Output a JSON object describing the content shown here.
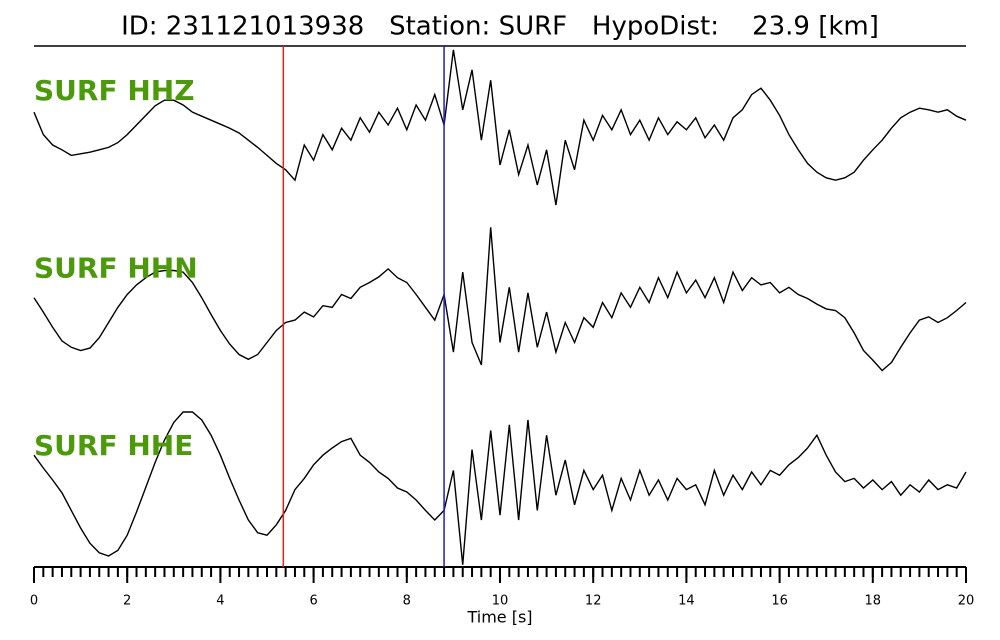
{
  "chart_data": {
    "type": "seismogram",
    "title": "ID: 231121013938   Station: SURF   HypoDist:    23.9 [km]",
    "x_label": "Time [s]",
    "xlim": [
      0,
      20
    ],
    "xticks": [
      0,
      2,
      4,
      6,
      8,
      10,
      12,
      14,
      16,
      18,
      20
    ],
    "ylim": [
      -1.2,
      1.2
    ],
    "label_color": "#4c9a0b",
    "markers": [
      {
        "x": 5.35,
        "color": "#e8201c"
      },
      {
        "x": 8.8,
        "color": "#1c1ccc"
      }
    ],
    "x": [
      0,
      0.2,
      0.4,
      0.6,
      0.8,
      1,
      1.2,
      1.4,
      1.6,
      1.8,
      2,
      2.2,
      2.4,
      2.6,
      2.8,
      3,
      3.2,
      3.4,
      3.6,
      3.8,
      4,
      4.2,
      4.4,
      4.6,
      4.8,
      5,
      5.2,
      5.4,
      5.6,
      5.8,
      6,
      6.2,
      6.4,
      6.6,
      6.8,
      7,
      7.2,
      7.4,
      7.6,
      7.8,
      8,
      8.2,
      8.4,
      8.6,
      8.8,
      9,
      9.2,
      9.4,
      9.6,
      9.8,
      10,
      10.2,
      10.4,
      10.6,
      10.8,
      11,
      11.2,
      11.4,
      11.6,
      11.8,
      12,
      12.2,
      12.4,
      12.6,
      12.8,
      13,
      13.2,
      13.4,
      13.6,
      13.8,
      14,
      14.2,
      14.4,
      14.6,
      14.8,
      15,
      15.2,
      15.4,
      15.6,
      15.8,
      16,
      16.2,
      16.4,
      16.6,
      16.8,
      17,
      17.2,
      17.4,
      17.6,
      17.8,
      18,
      18.2,
      18.4,
      18.6,
      18.8,
      19,
      19.2,
      19.4,
      19.6,
      19.8,
      20
    ],
    "series": [
      {
        "name": "SURF HHZ",
        "color": "#000000",
        "values": [
          0.16,
          -0.12,
          -0.25,
          -0.31,
          -0.38,
          -0.36,
          -0.34,
          -0.31,
          -0.28,
          -0.22,
          -0.12,
          0,
          0.12,
          0.24,
          0.31,
          0.31,
          0.25,
          0.16,
          0.11,
          0.06,
          0.01,
          -0.04,
          -0.1,
          -0.19,
          -0.28,
          -0.38,
          -0.48,
          -0.56,
          -0.69,
          -0.25,
          -0.44,
          -0.12,
          -0.31,
          -0.04,
          -0.19,
          0.09,
          -0.09,
          0.16,
          0,
          0.21,
          -0.06,
          0.25,
          0.06,
          0.38,
          0,
          0.94,
          0.19,
          0.69,
          -0.19,
          0.56,
          -0.5,
          -0.06,
          -0.62,
          -0.25,
          -0.75,
          -0.31,
          -1.0,
          -0.19,
          -0.56,
          0.06,
          -0.19,
          0.12,
          -0.06,
          0.19,
          -0.12,
          0.06,
          -0.19,
          0.09,
          -0.12,
          0.04,
          -0.06,
          0.09,
          -0.16,
          0,
          -0.19,
          0.09,
          0.19,
          0.38,
          0.46,
          0.31,
          0.12,
          -0.12,
          -0.31,
          -0.48,
          -0.59,
          -0.66,
          -0.69,
          -0.66,
          -0.59,
          -0.44,
          -0.31,
          -0.19,
          -0.04,
          0.09,
          0.16,
          0.21,
          0.19,
          0.16,
          0.19,
          0.11,
          0.06
        ]
      },
      {
        "name": "SURF HHN",
        "color": "#000000",
        "values": [
          0.06,
          -0.12,
          -0.31,
          -0.48,
          -0.56,
          -0.6,
          -0.57,
          -0.44,
          -0.25,
          -0.06,
          0.1,
          0.22,
          0.31,
          0.38,
          0.4,
          0.4,
          0.38,
          0.25,
          0.06,
          -0.15,
          -0.35,
          -0.52,
          -0.65,
          -0.71,
          -0.65,
          -0.5,
          -0.35,
          -0.25,
          -0.22,
          -0.12,
          -0.18,
          -0.04,
          -0.06,
          0.1,
          0.05,
          0.19,
          0.25,
          0.32,
          0.42,
          0.31,
          0.25,
          0.1,
          -0.06,
          -0.22,
          0.1,
          -0.62,
          0.38,
          -0.5,
          -0.78,
          0.94,
          -0.5,
          0.19,
          -0.62,
          0.12,
          -0.56,
          -0.12,
          -0.62,
          -0.25,
          -0.5,
          -0.19,
          -0.31,
          0,
          -0.19,
          0.12,
          -0.06,
          0.19,
          0,
          0.31,
          0.06,
          0.38,
          0.12,
          0.28,
          0.06,
          0.31,
          0,
          0.38,
          0.15,
          0.31,
          0.22,
          0.25,
          0.12,
          0.19,
          0.1,
          0.05,
          -0.02,
          -0.08,
          -0.1,
          -0.19,
          -0.38,
          -0.6,
          -0.72,
          -0.85,
          -0.75,
          -0.56,
          -0.38,
          -0.22,
          -0.18,
          -0.25,
          -0.19,
          -0.1,
          0
        ]
      },
      {
        "name": "SURF HHE",
        "color": "#000000",
        "values": [
          0.31,
          0.15,
          0,
          -0.16,
          -0.38,
          -0.6,
          -0.79,
          -0.91,
          -0.95,
          -0.88,
          -0.69,
          -0.4,
          -0.09,
          0.22,
          0.5,
          0.72,
          0.85,
          0.85,
          0.75,
          0.56,
          0.31,
          0.02,
          -0.25,
          -0.5,
          -0.66,
          -0.69,
          -0.56,
          -0.38,
          -0.12,
          0.02,
          0.19,
          0.31,
          0.4,
          0.48,
          0.52,
          0.31,
          0.22,
          0.1,
          0.02,
          -0.1,
          -0.15,
          -0.25,
          -0.38,
          -0.5,
          -0.38,
          0.12,
          -1.06,
          0.38,
          -0.5,
          0.62,
          -0.44,
          0.69,
          -0.5,
          0.75,
          -0.38,
          0.56,
          -0.19,
          0.25,
          -0.31,
          0.12,
          -0.12,
          0.06,
          -0.38,
          0.02,
          -0.25,
          0.12,
          -0.19,
          0,
          -0.25,
          0.02,
          -0.12,
          -0.06,
          -0.31,
          0.12,
          -0.19,
          0.06,
          -0.12,
          0.1,
          -0.06,
          0.12,
          0.06,
          0.19,
          0.28,
          0.4,
          0.56,
          0.31,
          0.1,
          -0.02,
          0.02,
          -0.1,
          0,
          -0.12,
          -0.02,
          -0.19,
          -0.06,
          -0.15,
          0,
          -0.12,
          -0.06,
          -0.1,
          0.1
        ]
      }
    ]
  }
}
